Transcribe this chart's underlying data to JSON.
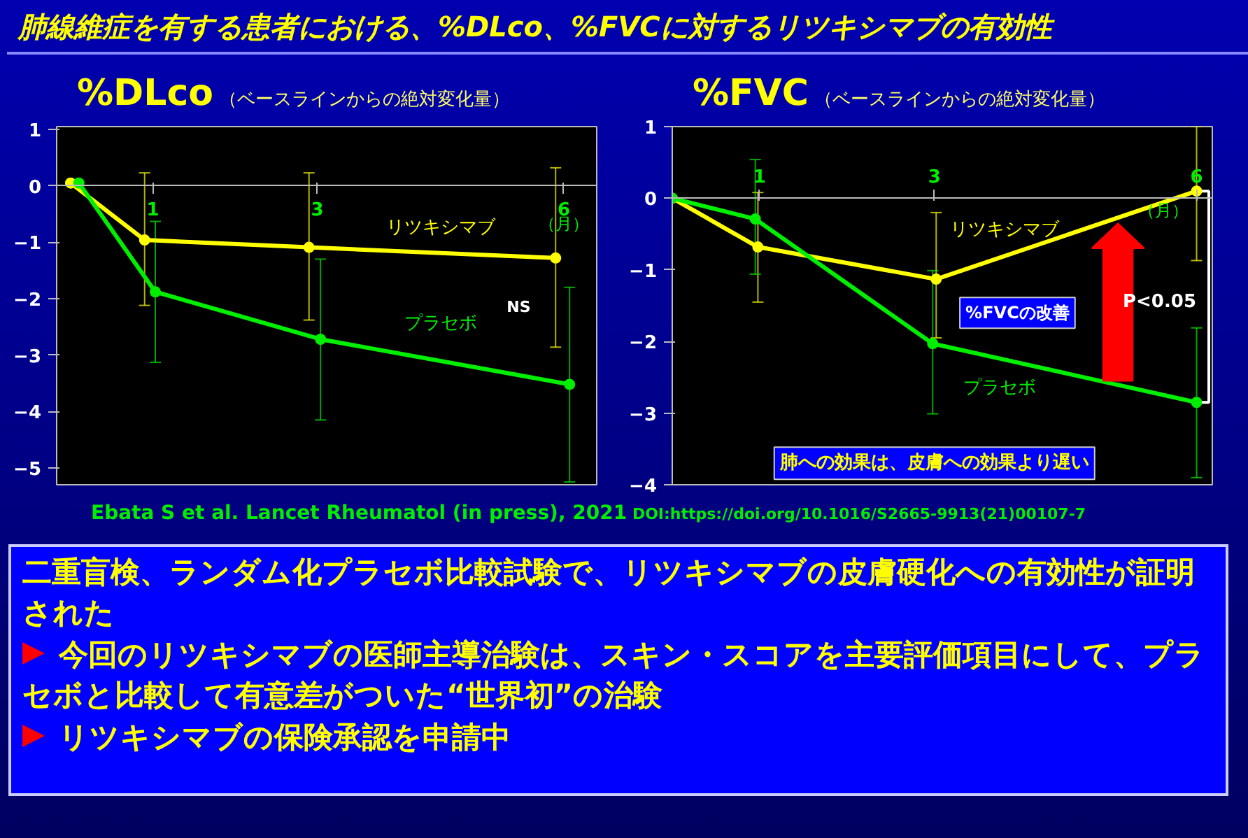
{
  "chart_data": [
    {
      "type": "line",
      "title": "%DLco",
      "subtitle": "（ベースラインからの絶対変化量）",
      "xlabel": "（月）",
      "xlim": [
        -0.17,
        6.4
      ],
      "ylim": [
        -5.3,
        1.05
      ],
      "xticks": [
        1,
        3,
        6
      ],
      "yticks": [
        1,
        0,
        -1,
        -2,
        -3,
        -4,
        -5
      ],
      "marker": "circle",
      "series": [
        {
          "name": "リツキシマブ",
          "color": "#ffff00",
          "x": [
            0,
            0.9,
            2.9,
            5.9
          ],
          "values": [
            0.05,
            -0.96,
            -1.09,
            -1.28
          ],
          "errors": [
            null,
            [
              -2.12,
              0.23
            ],
            [
              -2.38,
              0.23
            ],
            [
              -2.86,
              0.32
            ]
          ]
        },
        {
          "name": "プラセボ",
          "color": "#00ee00",
          "x": [
            0.1,
            1.03,
            3.04,
            6.07
          ],
          "values": [
            0.05,
            -1.88,
            -2.72,
            -3.52
          ],
          "errors": [
            null,
            [
              -3.13,
              -0.63
            ],
            [
              -4.15,
              -1.3
            ],
            [
              -5.25,
              -1.8
            ]
          ]
        }
      ],
      "annotations": [
        "NS"
      ]
    },
    {
      "type": "line",
      "title": "%FVC",
      "subtitle": "（ベースラインからの絶対変化量）",
      "xlabel": "（月）",
      "xlim": [
        0,
        6.18
      ],
      "ylim": [
        -4,
        1
      ],
      "xticks": [
        1,
        3,
        6
      ],
      "yticks": [
        1,
        0,
        -1,
        -2,
        -3,
        -4
      ],
      "marker": "circle",
      "series": [
        {
          "name": "リツキシマブ",
          "color": "#ffff00",
          "x": [
            0,
            0.98,
            3.02,
            6.0
          ],
          "values": [
            0,
            -0.68,
            -1.13,
            0.1
          ],
          "errors": [
            null,
            [
              -1.45,
              0.08
            ],
            [
              -1.95,
              -0.2
            ],
            [
              -0.87,
              1.0
            ]
          ]
        },
        {
          "name": "プラセボ",
          "color": "#00ee00",
          "x": [
            0,
            0.95,
            2.98,
            6.0
          ],
          "values": [
            0,
            -0.29,
            -2.03,
            -2.85
          ],
          "errors": [
            null,
            [
              -1.06,
              0.54
            ],
            [
              -3.01,
              -1.01
            ],
            [
              -3.9,
              -1.81
            ]
          ]
        }
      ],
      "annotations": [
        "%FVCの改善",
        "P<0.05",
        "肺への効果は、皮膚への効果より遅い"
      ]
    },
    {
      "type": "other",
      "title": "肺線維症を有する患者における、%DLco、%FVCに対するリツキシマブの有効性",
      "annotations": [
        "Ebata S et al. Lancet Rheumatol (in press), 2021",
        "DOI:https://doi.org/10.1016/S2665-9913(21)00107-7",
        "二重盲検、ランダム化プラセボ比較試験で、リツキシマブの皮膚硬化への有効性が証明された",
        "今回のリツキシマブの医師主導治験は、スキン・スコアを主要評価項目にして、プラセボと比較して有意差がついた“世界初”の治験",
        "リツキシマブの保険承認を申請中"
      ]
    }
  ]
}
